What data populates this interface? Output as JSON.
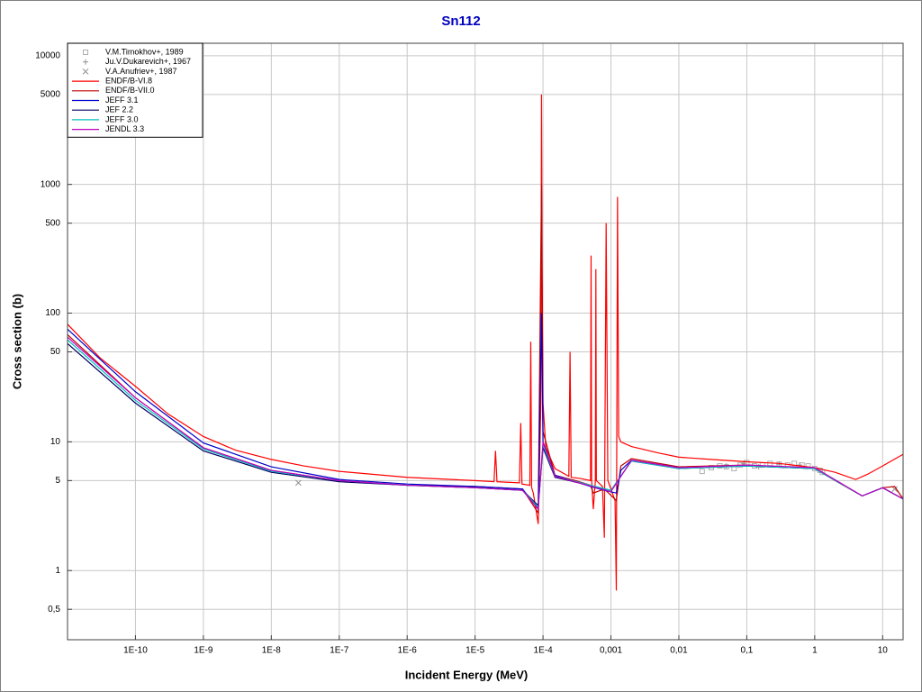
{
  "chart_data": {
    "type": "line",
    "title": "Sn112",
    "xlabel": "Incident Energy (MeV)",
    "ylabel": "Cross section (b)",
    "xscale": "log",
    "yscale": "log",
    "grid": true,
    "legend": "upper left",
    "xlim": [
      1e-11,
      20
    ],
    "ylim": [
      0.29,
      12500
    ],
    "xticks": [
      {
        "value": 1e-10,
        "label": "1E-10"
      },
      {
        "value": 1e-09,
        "label": "1E-9"
      },
      {
        "value": 1e-08,
        "label": "1E-8"
      },
      {
        "value": 1e-07,
        "label": "1E-7"
      },
      {
        "value": 1e-06,
        "label": "1E-6"
      },
      {
        "value": 1e-05,
        "label": "1E-5"
      },
      {
        "value": 0.0001,
        "label": "1E-4"
      },
      {
        "value": 0.001,
        "label": "0,001"
      },
      {
        "value": 0.01,
        "label": "0,01"
      },
      {
        "value": 0.1,
        "label": "0,1"
      },
      1,
      10
    ],
    "yticks": [
      {
        "value": 0.5,
        "label": "0,5"
      },
      1,
      5,
      10,
      50,
      100,
      500,
      1000,
      5000,
      10000
    ],
    "series": [
      {
        "name": "V.M.Timokhov+, 1989",
        "marker": "square",
        "color": "#b0b0b0",
        "x": [
          0.022,
          0.03,
          0.04,
          0.05,
          0.065,
          0.08,
          0.1,
          0.13,
          0.17,
          0.22,
          0.3,
          0.4,
          0.5,
          0.65,
          0.8,
          1.0,
          1.2,
          1.3
        ],
        "values": [
          5.9,
          6.3,
          6.5,
          6.4,
          6.2,
          6.6,
          6.9,
          6.5,
          6.6,
          6.8,
          6.7,
          6.6,
          6.8,
          6.6,
          6.5,
          6.2,
          6.0,
          5.8
        ]
      },
      {
        "name": "Ju.V.Dukarevich+, 1967",
        "marker": "plus",
        "color": "#909090",
        "x": [
          0.05,
          0.09,
          0.15,
          0.3,
          0.6
        ],
        "values": [
          6.5,
          6.8,
          6.4,
          6.7,
          6.6
        ]
      },
      {
        "name": "V.A.Anufriev+, 1987",
        "marker": "cross",
        "color": "#909090",
        "x": [
          2.5e-08,
          15
        ],
        "values": [
          4.8,
          4.3
        ]
      },
      {
        "name": "ENDF/B-VI.8",
        "color": "#ff0000",
        "x": [
          1e-11,
          3e-11,
          1e-10,
          3e-10,
          1e-09,
          3e-09,
          1e-08,
          3e-08,
          1e-07,
          1e-06,
          1e-05,
          1.9e-05,
          2e-05,
          2.1e-05,
          4.5e-05,
          4.7e-05,
          4.9e-05,
          6.4e-05,
          6.6e-05,
          6.8e-05,
          7.2e-05,
          8.5e-05,
          9.3e-05,
          9.5e-05,
          9.7e-05,
          0.0001,
          0.00011,
          0.00015,
          0.00024,
          0.00025,
          0.00026,
          0.00035,
          0.0005,
          0.00051,
          0.00052,
          0.00055,
          0.00059,
          0.0006,
          0.00061,
          0.00075,
          0.0008,
          0.00085,
          0.0009,
          0.00115,
          0.0012,
          0.00125,
          0.0013,
          0.0014,
          0.002,
          0.005,
          0.01,
          0.03,
          0.1,
          0.3,
          1,
          2,
          4,
          6,
          10,
          20
        ],
        "values": [
          82,
          45,
          27,
          16.5,
          11,
          8.6,
          7.3,
          6.5,
          5.9,
          5.3,
          5.0,
          4.9,
          8.5,
          4.9,
          4.8,
          14,
          4.7,
          4.6,
          60,
          4.4,
          4.0,
          2.3,
          20,
          5000,
          200,
          20,
          9,
          6.2,
          5.4,
          50,
          5.3,
          5.2,
          5.0,
          280,
          5.0,
          3.0,
          5.0,
          220,
          5.0,
          4.5,
          1.8,
          500,
          5.0,
          3.5,
          0.7,
          800,
          11,
          10,
          9.2,
          8.2,
          7.6,
          7.3,
          7.0,
          6.8,
          6.3,
          5.8,
          5.1,
          5.6,
          6.5,
          8.0
        ]
      },
      {
        "name": "ENDF/B-VII.0",
        "color": "#c00000",
        "x": [
          1e-11,
          1e-10,
          1e-09,
          1e-08,
          1e-07,
          1e-06,
          1e-05,
          5e-05,
          8.5e-05,
          9.5e-05,
          0.0001,
          0.00015,
          0.0003,
          0.0005,
          0.00055,
          0.0008,
          0.0012,
          0.0014,
          0.002,
          0.01,
          0.1,
          1,
          2,
          5,
          10,
          15,
          20
        ],
        "values": [
          68,
          22,
          9.0,
          6.0,
          5.0,
          4.6,
          4.5,
          4.3,
          2.8,
          1000,
          12,
          5.5,
          5.0,
          4.6,
          4.0,
          4.3,
          3.5,
          6.5,
          7.4,
          6.4,
          6.6,
          6.2,
          5.0,
          3.8,
          4.4,
          4.5,
          3.6
        ]
      },
      {
        "name": "JEFF 3.1",
        "color": "#0000cc",
        "x": [
          1e-11,
          1e-10,
          1e-09,
          1e-08,
          1e-07,
          1e-06,
          1e-05,
          5e-05,
          8.5e-05,
          9.5e-05,
          0.0001,
          0.00015,
          0.0003,
          0.0005,
          0.0008,
          0.0012,
          0.0014,
          0.002,
          0.01,
          0.1,
          1,
          5,
          10,
          20
        ],
        "values": [
          75,
          24.5,
          9.8,
          6.4,
          5.1,
          4.7,
          4.5,
          4.3,
          3.0,
          100,
          10,
          5.5,
          4.9,
          4.5,
          4.2,
          4.0,
          6.0,
          7.2,
          6.3,
          6.5,
          6.2,
          3.8,
          4.4,
          3.6
        ]
      },
      {
        "name": "JEF 2.2",
        "color": "#000060",
        "x": [
          1e-11,
          1e-10,
          1e-09,
          1e-08,
          1e-07,
          1e-06,
          1e-05,
          5e-05,
          8.5e-05,
          0.0001,
          0.00015,
          0.001,
          0.002,
          0.01,
          0.1,
          1,
          5,
          10,
          20
        ],
        "values": [
          58,
          20,
          8.5,
          5.8,
          4.9,
          4.6,
          4.4,
          4.2,
          3.2,
          9,
          5.3,
          4.2,
          7.1,
          6.2,
          6.5,
          6.2,
          3.8,
          4.4,
          3.6
        ]
      },
      {
        "name": "JEFF 3.0",
        "color": "#00c0c0",
        "x": [
          1e-11,
          1e-10,
          1e-09,
          1e-08,
          1e-07,
          1e-06,
          1e-05,
          5e-05,
          8.5e-05,
          0.0001,
          0.00015,
          0.001,
          0.002,
          0.01,
          0.1,
          1,
          5,
          10,
          20
        ],
        "values": [
          62,
          21,
          8.8,
          5.9,
          5.0,
          4.6,
          4.4,
          4.2,
          3.1,
          9.5,
          5.4,
          4.2,
          7.1,
          6.2,
          6.5,
          6.2,
          3.8,
          4.4,
          3.6
        ]
      },
      {
        "name": "JENDL 3.3",
        "color": "#c000c0",
        "x": [
          1e-11,
          1e-10,
          1e-09,
          1e-08,
          1e-07,
          1e-06,
          1e-05,
          5e-05,
          8.5e-05,
          0.0001,
          0.00015,
          0.001,
          0.002,
          0.01,
          0.1,
          1,
          5,
          10,
          20
        ],
        "values": [
          65,
          22,
          9.0,
          6.0,
          5.0,
          4.6,
          4.4,
          4.2,
          3.0,
          10,
          5.4,
          4.1,
          7.2,
          6.3,
          6.6,
          6.3,
          3.8,
          4.4,
          3.6
        ]
      }
    ]
  }
}
